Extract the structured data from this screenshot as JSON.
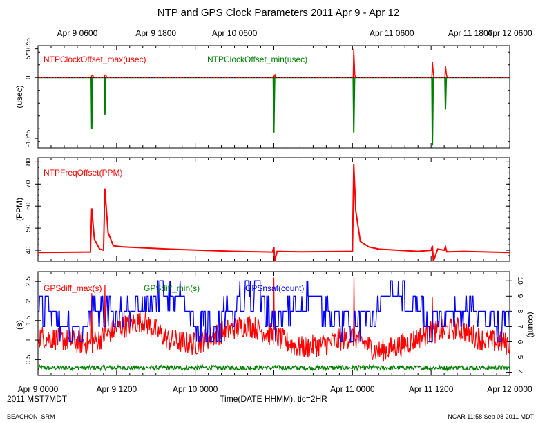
{
  "title": "NTP and GPS Clock Parameters 2011 Apr 9 - Apr 12",
  "top_axis_labels": [
    "Apr  9 0600",
    "Apr  9 1800",
    "Apr 10 0600",
    "Apr 11 0600",
    "Apr 11 1800",
    "Apr 12 0600"
  ],
  "bottom_axis_labels": [
    "Apr  9 0000",
    "Apr  9 1200",
    "Apr 10 0000",
    "Apr 11 0000",
    "Apr 11 1200",
    "Apr 12 0000"
  ],
  "timezone_label": "2011 MST7MDT",
  "xlabel": "Time(DATE HHMM), tic=2HR",
  "footer_left": "BEACHON_SRM",
  "footer_right": "NCAR 11:58 Sep 08 2011 MDT",
  "chart_data": [
    {
      "type": "line",
      "name": "offset-panel",
      "ylabel": "(usec)",
      "ytick_labels": [
        "5*10^5",
        "0",
        "-10^5"
      ],
      "ylim": [
        -110000,
        50000
      ],
      "x_unit": "hours since Apr 9 0000",
      "xlim": [
        0,
        72
      ],
      "series": [
        {
          "name": "NTPClockOffset_max(usec)",
          "color": "#ff0000",
          "spikes": [
            [
              8.2,
              2500
            ],
            [
              10.2,
              3500
            ],
            [
              36.0,
              1500
            ],
            [
              48.2,
              45000
            ],
            [
              60.2,
              25000
            ],
            [
              62.2,
              18000
            ]
          ]
        },
        {
          "name": "NTPClockOffset_min(usec)",
          "color": "#008000",
          "spikes": [
            [
              8.2,
              -80000
            ],
            [
              10.2,
              -58000
            ],
            [
              36.0,
              -86000
            ],
            [
              48.2,
              -86000
            ],
            [
              60.2,
              -106000
            ],
            [
              62.2,
              -50000
            ]
          ]
        }
      ]
    },
    {
      "type": "line",
      "name": "freq-panel",
      "ylabel": "(PPM)",
      "ytick_labels": [
        "80",
        "70",
        "60",
        "50",
        "40"
      ],
      "ylim": [
        35,
        82
      ],
      "xlim": [
        0,
        72
      ],
      "series": [
        {
          "name": "NTPFreqOffset(PPM)",
          "color": "#ff0000",
          "x": [
            0,
            8.0,
            8.2,
            8.6,
            9.4,
            10.0,
            10.2,
            10.7,
            11.5,
            13,
            20,
            30,
            35.8,
            36.0,
            36.15,
            36.5,
            40,
            48.0,
            48.2,
            48.5,
            49.2,
            50.5,
            52,
            58,
            60.0,
            60.2,
            60.35,
            61,
            62.0,
            62.2,
            62.4,
            65,
            72
          ],
          "values": [
            39,
            39.2,
            59,
            45,
            40.5,
            40,
            68,
            48,
            42,
            41.5,
            40.5,
            39.5,
            39.2,
            41.5,
            35,
            39.5,
            39.3,
            39.5,
            79,
            58,
            44,
            41.5,
            40.5,
            39.5,
            40,
            42,
            35,
            40.5,
            40,
            41.5,
            39.3,
            39.5,
            39
          ]
        }
      ]
    },
    {
      "type": "line",
      "name": "gps-panel",
      "ylabel": "(s)",
      "ylabel_right": "(count)",
      "ytick_labels": [
        "2.5",
        "2",
        "1.5",
        "1",
        "0.5"
      ],
      "ytick_labels_right": [
        "10",
        "9",
        "8",
        "7",
        "6",
        "5",
        "4"
      ],
      "ylim": [
        0.1,
        2.75
      ],
      "ylim_right": [
        3.8,
        10.6
      ],
      "xlim": [
        0,
        72
      ],
      "series": [
        {
          "name": "GPSdiff_max(s)",
          "color": "#ff0000",
          "axis": "left",
          "knots_x": [
            0,
            4,
            8,
            12,
            16,
            20,
            24,
            28,
            32,
            36,
            40,
            44,
            48,
            52,
            56,
            60,
            64,
            68,
            72
          ],
          "knots_y": [
            1.1,
            1.0,
            0.9,
            1.3,
            1.5,
            1.0,
            0.9,
            1.2,
            1.4,
            1.1,
            0.8,
            0.9,
            1.1,
            0.7,
            0.9,
            1.2,
            1.3,
            1.0,
            0.9
          ],
          "spikes": [
            [
              8.2,
              2.2
            ],
            [
              10.2,
              2.4
            ],
            [
              36.0,
              2.6
            ],
            [
              48.2,
              2.6
            ],
            [
              60.2,
              2.1
            ]
          ]
        },
        {
          "name": "GPSdiff_min(s)",
          "color": "#008000",
          "axis": "left",
          "baseline": 0.28,
          "noise": 0.06
        },
        {
          "name": "GPSnsat(count)",
          "color": "#0000ff",
          "axis": "right",
          "knots_x": [
            0,
            3,
            6,
            9,
            12,
            15,
            18,
            21,
            24,
            27,
            30,
            33,
            36,
            39,
            42,
            45,
            48,
            51,
            54,
            57,
            60,
            63,
            66,
            69,
            72
          ],
          "knots_y": [
            8.5,
            7.5,
            7.0,
            8.5,
            7.5,
            8.0,
            8.8,
            9.0,
            7.5,
            7.0,
            8.5,
            9.0,
            7.2,
            8.0,
            8.8,
            7.5,
            7.0,
            7.5,
            9.0,
            8.8,
            7.0,
            7.5,
            8.5,
            7.0,
            7.5
          ]
        }
      ]
    }
  ]
}
